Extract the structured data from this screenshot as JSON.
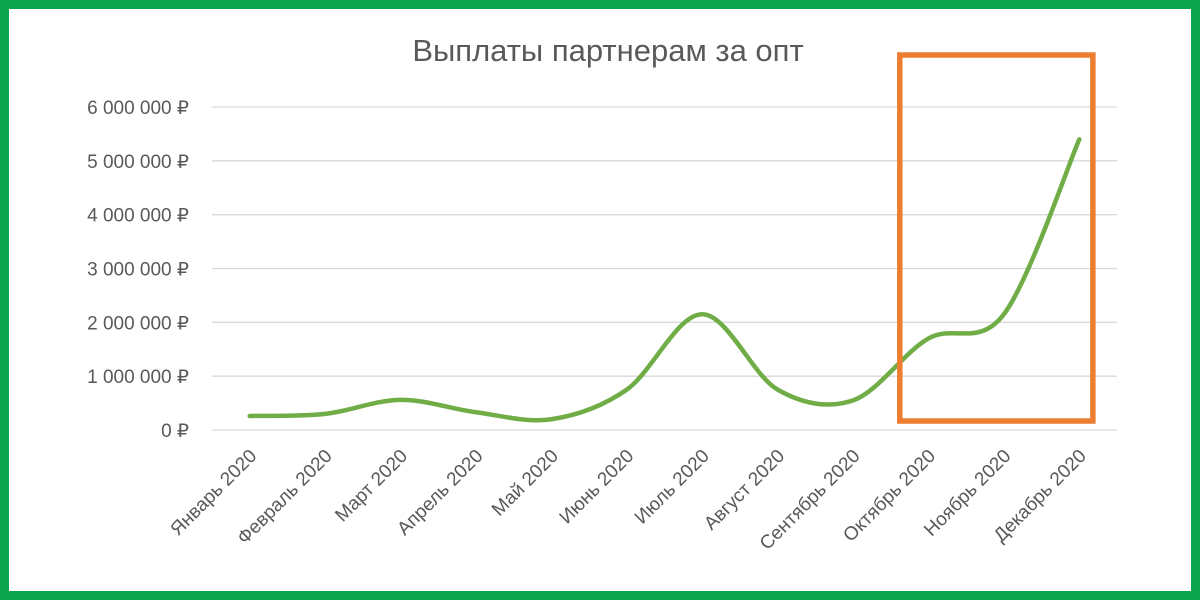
{
  "chart_data": {
    "type": "line",
    "title": "Выплаты партнерам за опт",
    "categories": [
      "Январь 2020",
      "Февраль 2020",
      "Март 2020",
      "Апрель 2020",
      "Май 2020",
      "Июнь 2020",
      "Июль 2020",
      "Август 2020",
      "Сентябрь 2020",
      "Октябрь 2020",
      "Ноябрь 2020",
      "Декабрь 2020"
    ],
    "series": [
      {
        "values": [
          260000,
          300000,
          560000,
          330000,
          200000,
          750000,
          2150000,
          750000,
          550000,
          1700000,
          2150000,
          5400000
        ],
        "color": "#70ad47"
      }
    ],
    "ylim": [
      0,
      6000000
    ],
    "yticks": [
      0,
      1000000,
      2000000,
      3000000,
      4000000,
      5000000,
      6000000
    ],
    "ytick_labels": [
      "0 ₽",
      "1 000 000 ₽",
      "2 000 000 ₽",
      "3 000 000 ₽",
      "4 000 000 ₽",
      "5 000 000 ₽",
      "6 000 000 ₽"
    ],
    "grid": true,
    "highlight": {
      "categories": [
        "Октябрь 2020",
        "Декабрь 2020"
      ],
      "color": "#ed7d31"
    },
    "frame_color": "#0aa54e"
  }
}
